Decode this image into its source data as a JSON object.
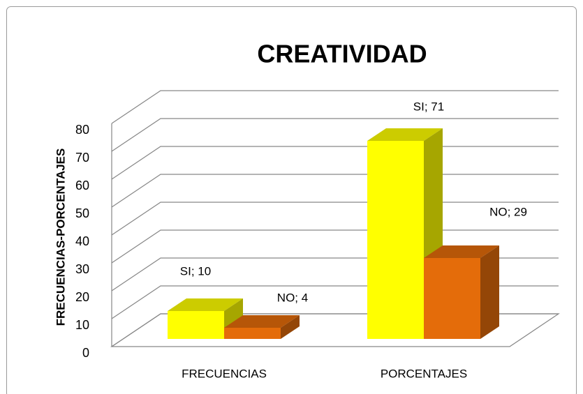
{
  "chart_data": {
    "type": "bar3d",
    "title": "CREATIVIDAD",
    "y_label": "FRECUENCIAS-PORCENTAJES",
    "categories": [
      "FRECUENCIAS",
      "PORCENTAJES"
    ],
    "series": [
      {
        "name": "SI",
        "color": "#ffff00",
        "values": [
          10,
          71
        ],
        "value_labels": [
          "SI; 10",
          "SI; 71"
        ]
      },
      {
        "name": "NO",
        "color": "#e46c0a",
        "values": [
          4,
          29
        ],
        "value_labels": [
          "NO; 4",
          "NO; 29"
        ]
      }
    ],
    "ylim": [
      0,
      80
    ],
    "yticks": [
      0,
      10,
      20,
      30,
      40,
      50,
      60,
      70,
      80
    ],
    "grid": true
  }
}
